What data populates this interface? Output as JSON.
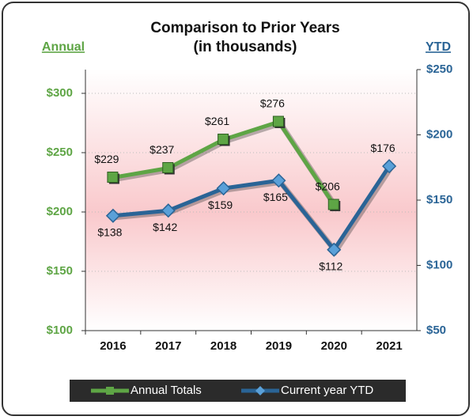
{
  "chart_data": {
    "type": "line",
    "title": "Comparison to Prior Years",
    "subtitle": "(in thousands)",
    "y_label": "Annual",
    "y2_label": "YTD",
    "categories": [
      "2016",
      "2017",
      "2018",
      "2019",
      "2020",
      "2021"
    ],
    "series": [
      {
        "name": "Annual Totals",
        "color": "#5ea545",
        "values": [
          229,
          237,
          261,
          276,
          206,
          null
        ],
        "value_labels": [
          "$229",
          "$237",
          "$261",
          "$276",
          "$206",
          null
        ]
      },
      {
        "name": "Current year YTD",
        "color": "#2a6496",
        "axis": "y2",
        "values": [
          138,
          142,
          159,
          165,
          112,
          176
        ],
        "value_labels": [
          "$138",
          "$142",
          "$159",
          "$165",
          "$112",
          "$176"
        ]
      }
    ],
    "ylim": [
      100,
      320
    ],
    "yticks": [
      {
        "value": 100,
        "label": "$100"
      },
      {
        "value": 150,
        "label": "$150"
      },
      {
        "value": 200,
        "label": "$200"
      },
      {
        "value": 250,
        "label": "$250"
      },
      {
        "value": 300,
        "label": "$300"
      }
    ],
    "y2lim": [
      50,
      250
    ],
    "y2ticks": [
      {
        "value": 50,
        "label": "$50"
      },
      {
        "value": 100,
        "label": "$100"
      },
      {
        "value": 150,
        "label": "$150"
      },
      {
        "value": 200,
        "label": "$200"
      },
      {
        "value": 250,
        "label": "$250"
      }
    ],
    "grid": true,
    "legend": "bottom"
  }
}
